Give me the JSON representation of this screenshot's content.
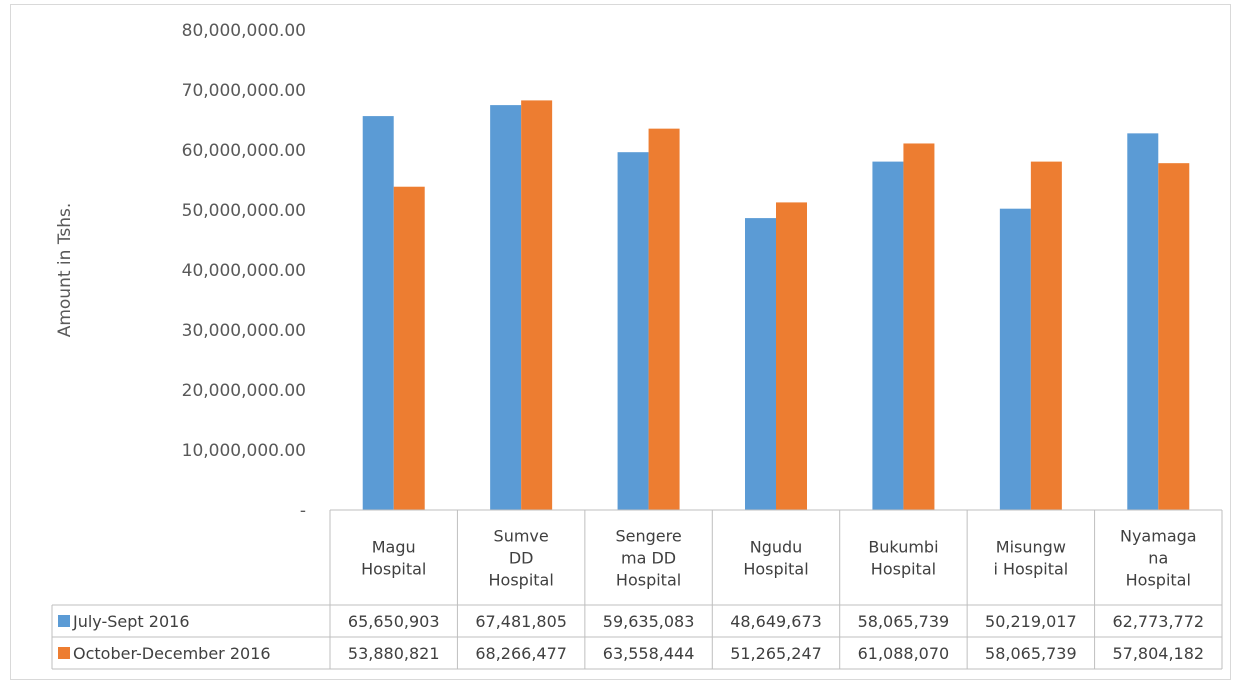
{
  "chart_data": {
    "type": "bar",
    "ylabel": "Amount in Tshs.",
    "ylim": [
      0,
      80000000
    ],
    "yticks": [
      "-",
      "10,000,000.00",
      "20,000,000.00",
      "30,000,000.00",
      "40,000,000.00",
      "50,000,000.00",
      "60,000,000.00",
      "70,000,000.00",
      "80,000,000.00"
    ],
    "ytick_values": [
      0,
      10000000,
      20000000,
      30000000,
      40000000,
      50000000,
      60000000,
      70000000,
      80000000
    ],
    "grid": false,
    "legend_placement": "data-table",
    "categories": [
      [
        "Magu",
        "Hospital"
      ],
      [
        "Sumve",
        "DD",
        "Hospital"
      ],
      [
        "Sengere",
        "ma DD",
        "Hospital"
      ],
      [
        "Ngudu",
        "Hospital"
      ],
      [
        "Bukumbi",
        "Hospital"
      ],
      [
        "Misungw",
        "i Hospital"
      ],
      [
        "Nyamaga",
        "na",
        "Hospital"
      ]
    ],
    "series": [
      {
        "name": "July-Sept 2016",
        "color": "#5b9bd5",
        "values": [
          65650903,
          67481805,
          59635083,
          48649673,
          58065739,
          50219017,
          62773772
        ],
        "labels": [
          "65,650,903",
          "67,481,805",
          "59,635,083",
          "48,649,673",
          "58,065,739",
          "50,219,017",
          "62,773,772"
        ]
      },
      {
        "name": "October-December 2016",
        "color": "#ed7d31",
        "values": [
          53880821,
          68266477,
          63558444,
          51265247,
          61088070,
          58065739,
          57804182
        ],
        "labels": [
          "53,880,821",
          "68,266,477",
          "63,558,444",
          "51,265,247",
          "61,088,070",
          "58,065,739",
          "57,804,182"
        ]
      }
    ]
  }
}
